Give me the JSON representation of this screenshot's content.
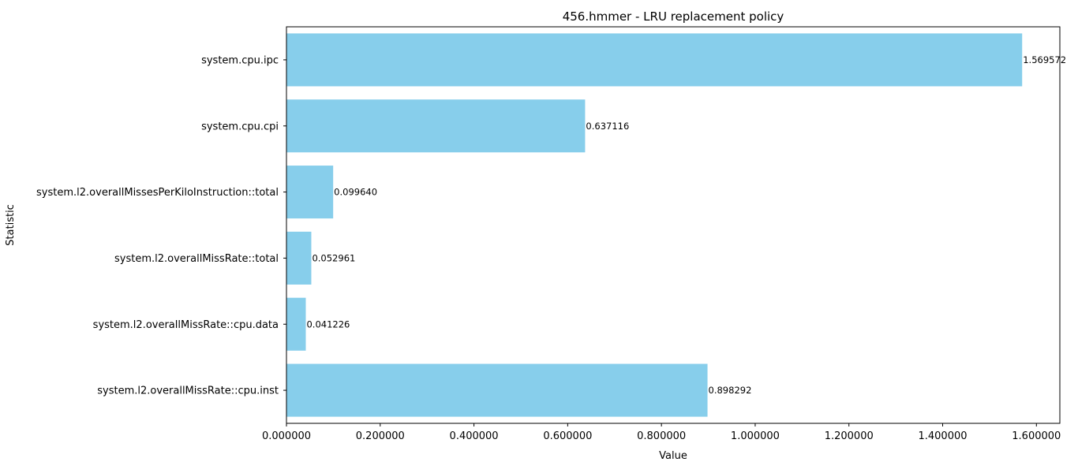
{
  "chart_data": {
    "type": "bar",
    "orientation": "horizontal",
    "title": "456.hmmer - LRU replacement policy",
    "xlabel": "Value",
    "ylabel": "Statistic",
    "xlim": [
      0,
      1.65
    ],
    "xticks": [
      0,
      0.2,
      0.4,
      0.6,
      0.8,
      1.0,
      1.2,
      1.4,
      1.6
    ],
    "xtick_labels": [
      "0.000000",
      "0.200000",
      "0.400000",
      "0.600000",
      "0.800000",
      "1.000000",
      "1.200000",
      "1.400000",
      "1.600000"
    ],
    "categories": [
      "system.cpu.ipc",
      "system.cpu.cpi",
      "system.l2.overallMissesPerKiloInstruction::total",
      "system.l2.overallMissRate::total",
      "system.l2.overallMissRate::cpu.data",
      "system.l2.overallMissRate::cpu.inst"
    ],
    "values": [
      1.569572,
      0.637116,
      0.09964,
      0.052961,
      0.041226,
      0.898292
    ],
    "value_labels": [
      "1.569572",
      "0.637116",
      "0.099640",
      "0.052961",
      "0.041226",
      "0.898292"
    ],
    "bar_color": "#87ceeb",
    "grid": false,
    "legend": "none"
  }
}
